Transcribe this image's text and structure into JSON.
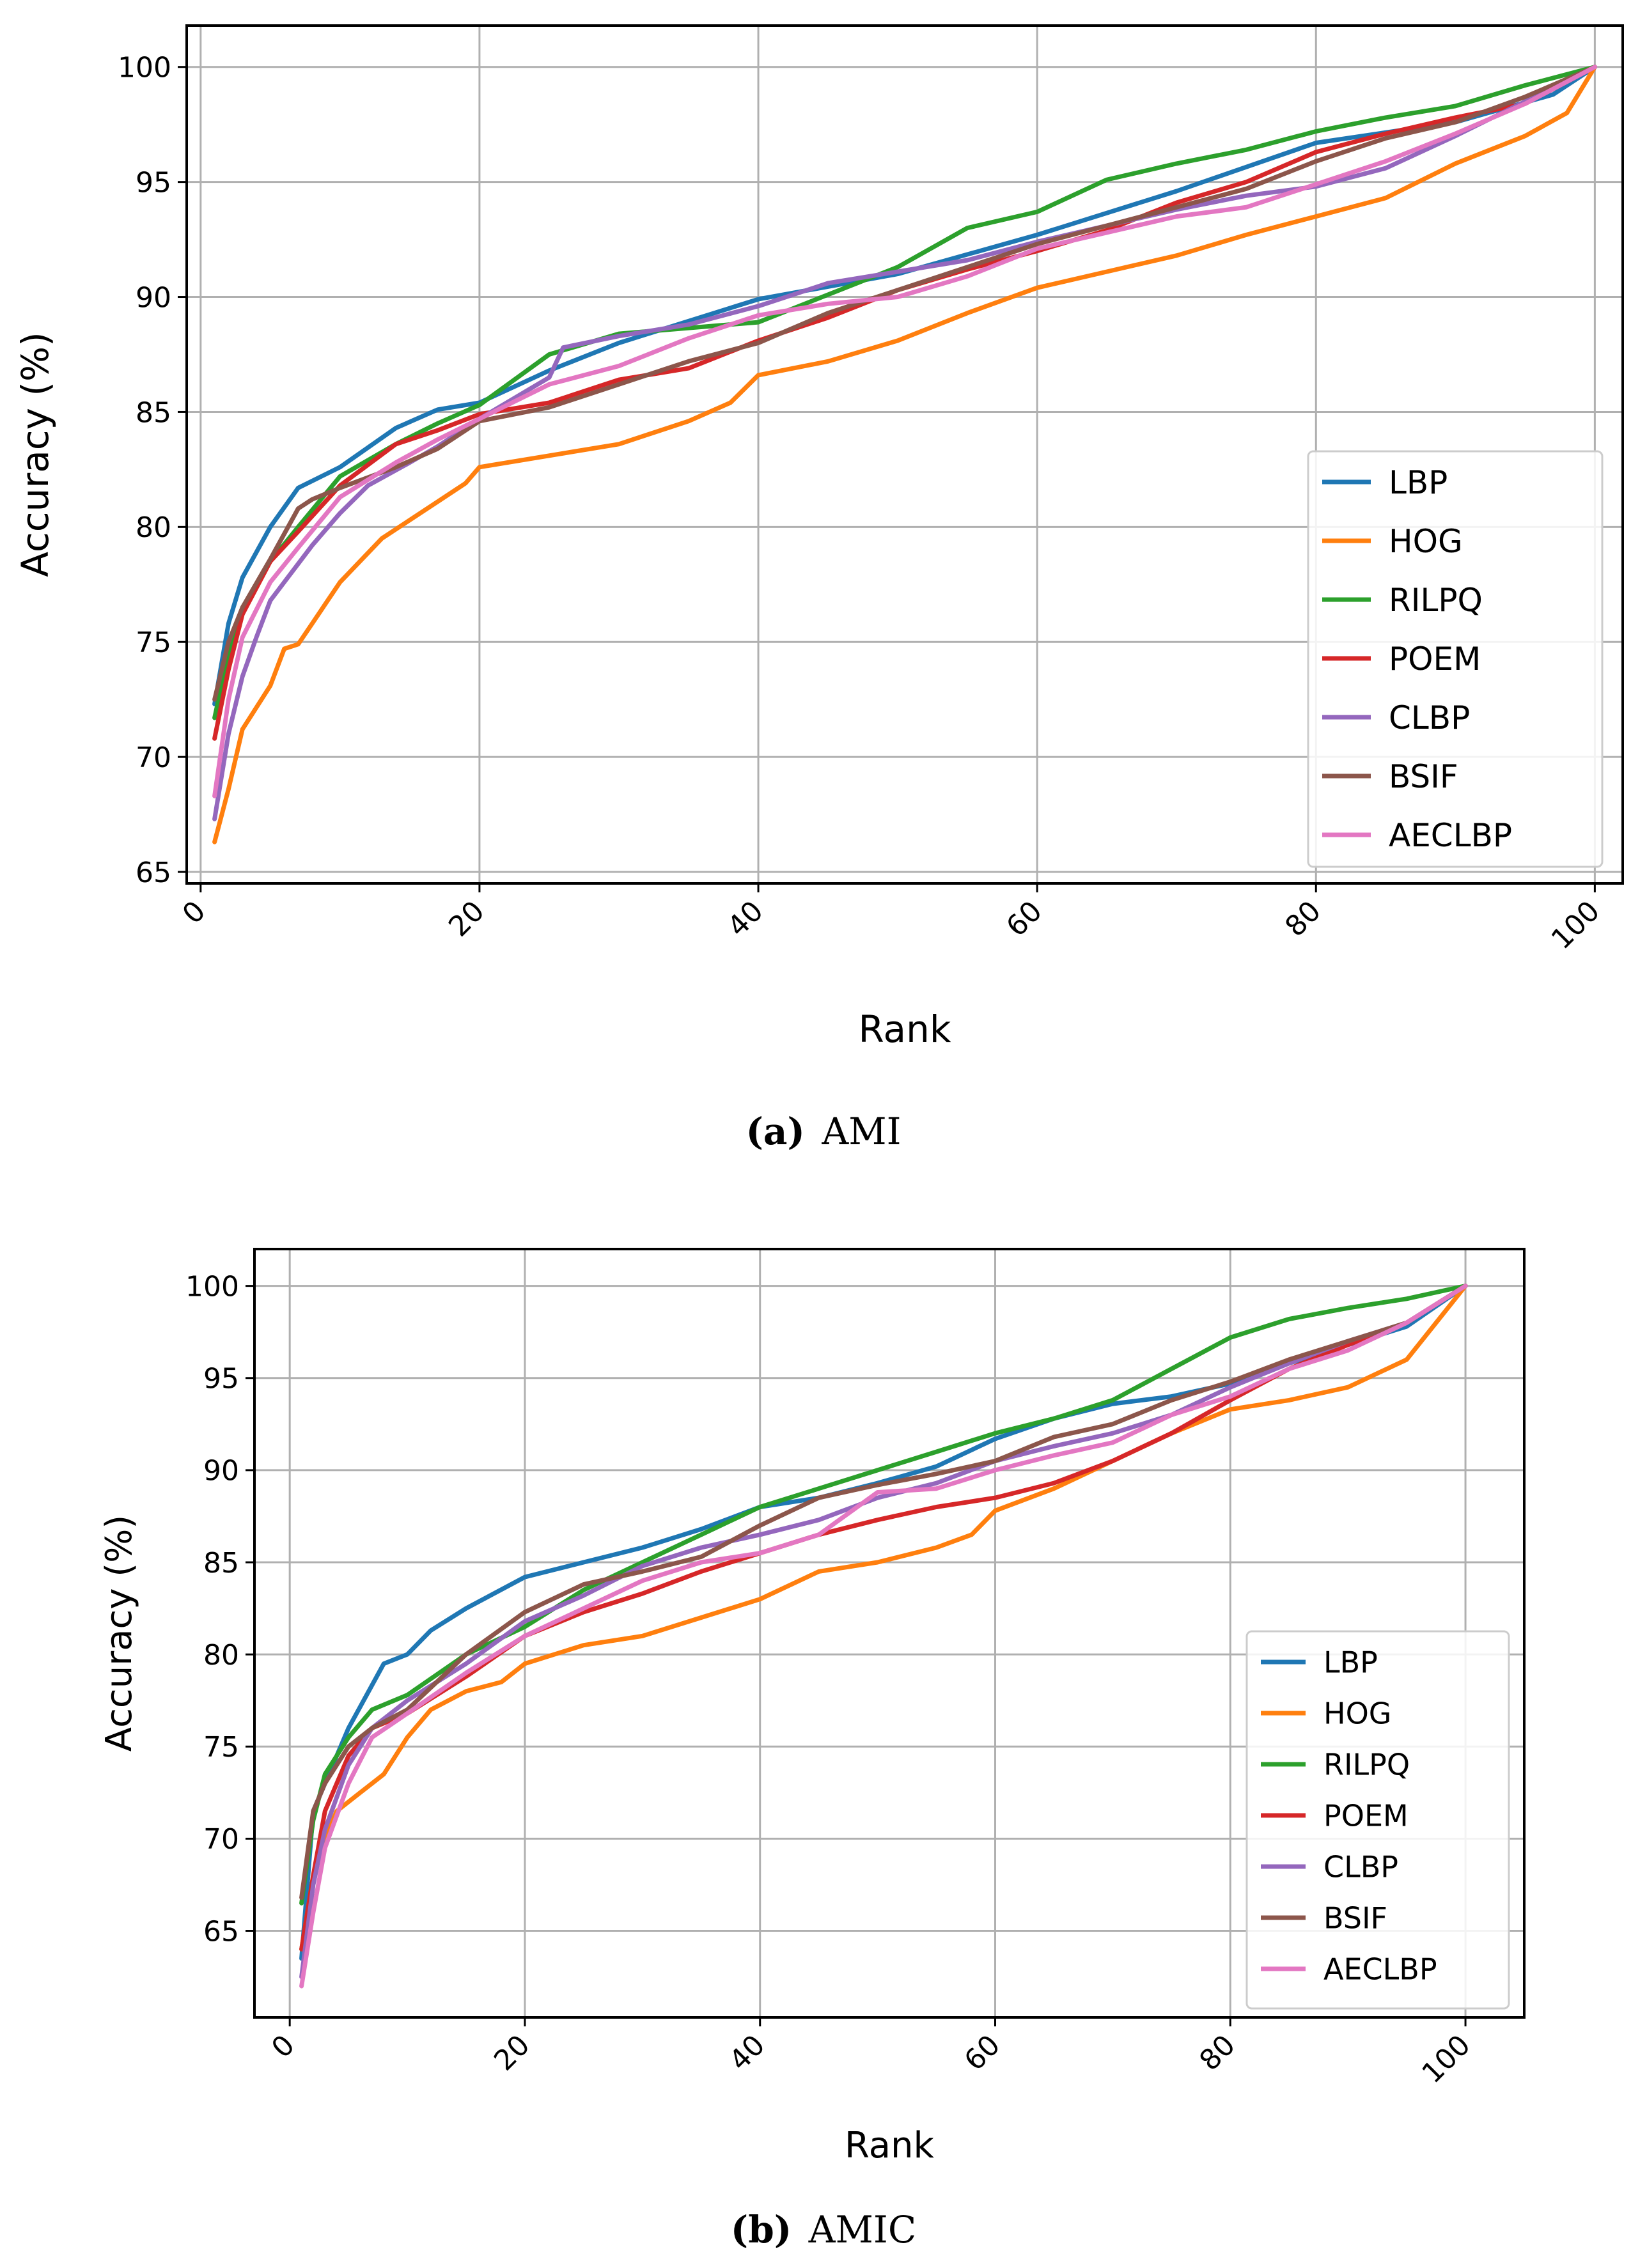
{
  "figure": {
    "captions": [
      {
        "label": "(a)",
        "name": "AMI"
      },
      {
        "label": "(b)",
        "name": "AMIC"
      }
    ]
  },
  "colors": {
    "LBP": "#1f77b4",
    "HOG": "#ff7f0e",
    "RILPQ": "#2ca02c",
    "POEM": "#d62728",
    "CLBP": "#9467bd",
    "BSIF": "#8c564b",
    "AECLBP": "#e377c2",
    "grid": "#b0b0b0",
    "axis": "#000000"
  },
  "chart_data": [
    {
      "type": "line",
      "title": "",
      "caption": "AMI",
      "xlabel": "Rank",
      "ylabel": "Accuracy (%)",
      "xlim": [
        -1,
        102
      ],
      "ylim": [
        64.5,
        101.8
      ],
      "xticks": [
        0,
        20,
        40,
        60,
        80,
        100
      ],
      "yticks": [
        65,
        70,
        75,
        80,
        85,
        90,
        95,
        100
      ],
      "grid": true,
      "legend": "lower right",
      "series": [
        {
          "name": "LBP",
          "x": [
            1,
            2,
            3,
            5,
            7,
            10,
            14,
            17,
            20,
            25,
            30,
            40,
            50,
            60,
            70,
            80,
            90,
            97,
            100
          ],
          "y": [
            72.3,
            75.8,
            77.8,
            80.0,
            81.7,
            82.6,
            84.3,
            85.1,
            85.4,
            86.8,
            88.0,
            89.9,
            91.0,
            92.7,
            94.6,
            96.7,
            97.6,
            98.8,
            100
          ]
        },
        {
          "name": "HOG",
          "x": [
            1,
            2,
            3,
            5,
            6,
            7,
            8,
            10,
            13,
            17,
            19,
            20,
            25,
            30,
            35,
            38,
            40,
            45,
            50,
            55,
            60,
            65,
            70,
            75,
            80,
            85,
            90,
            95,
            98,
            100
          ],
          "y": [
            66.3,
            68.6,
            71.2,
            73.1,
            74.7,
            74.9,
            75.8,
            77.6,
            79.5,
            81.1,
            81.9,
            82.6,
            83.1,
            83.6,
            84.6,
            85.4,
            86.6,
            87.2,
            88.1,
            89.3,
            90.4,
            91.1,
            91.8,
            92.7,
            93.5,
            94.3,
            95.8,
            97.0,
            98.0,
            100
          ]
        },
        {
          "name": "RILPQ",
          "x": [
            1,
            2,
            3,
            5,
            7,
            10,
            14,
            17,
            20,
            25,
            30,
            40,
            50,
            55,
            60,
            65,
            70,
            75,
            80,
            85,
            90,
            95,
            100
          ],
          "y": [
            71.7,
            74.5,
            76.5,
            78.5,
            80.0,
            82.2,
            83.6,
            84.5,
            85.3,
            87.5,
            88.4,
            88.9,
            91.3,
            93.0,
            93.7,
            95.1,
            95.8,
            96.4,
            97.2,
            97.8,
            98.3,
            99.2,
            100
          ]
        },
        {
          "name": "POEM",
          "x": [
            1,
            2,
            3,
            5,
            7,
            10,
            14,
            17,
            20,
            25,
            30,
            35,
            40,
            45,
            50,
            55,
            60,
            65,
            70,
            75,
            80,
            85,
            90,
            95,
            100
          ],
          "y": [
            70.8,
            73.8,
            76.2,
            78.5,
            79.8,
            81.8,
            83.6,
            84.2,
            84.9,
            85.4,
            86.4,
            86.9,
            88.1,
            89.1,
            90.3,
            91.2,
            92.0,
            92.9,
            94.1,
            95.0,
            96.3,
            97.1,
            97.8,
            98.4,
            100
          ]
        },
        {
          "name": "CLBP",
          "x": [
            1,
            2,
            3,
            4,
            5,
            6,
            8,
            10,
            12,
            15,
            17,
            20,
            25,
            26,
            30,
            35,
            40,
            45,
            50,
            55,
            60,
            65,
            70,
            75,
            80,
            85,
            90,
            95,
            100
          ],
          "y": [
            67.3,
            71.0,
            73.5,
            75.2,
            76.8,
            77.6,
            79.2,
            80.6,
            81.8,
            82.8,
            83.5,
            84.7,
            86.5,
            87.8,
            88.3,
            88.8,
            89.6,
            90.6,
            91.1,
            91.6,
            92.4,
            93.1,
            93.8,
            94.4,
            94.8,
            95.6,
            97.0,
            98.5,
            100
          ]
        },
        {
          "name": "BSIF",
          "x": [
            1,
            2,
            3,
            5,
            7,
            8,
            10,
            14,
            17,
            20,
            25,
            30,
            35,
            40,
            45,
            50,
            55,
            60,
            65,
            70,
            75,
            80,
            85,
            90,
            95,
            100
          ],
          "y": [
            72.5,
            75.0,
            76.5,
            78.6,
            80.8,
            81.2,
            81.7,
            82.6,
            83.4,
            84.6,
            85.2,
            86.2,
            87.2,
            88.0,
            89.3,
            90.3,
            91.3,
            92.3,
            93.1,
            93.9,
            94.7,
            95.9,
            96.9,
            97.6,
            98.7,
            100
          ]
        },
        {
          "name": "AECLBP",
          "x": [
            1,
            2,
            3,
            5,
            7,
            10,
            14,
            17,
            20,
            25,
            30,
            35,
            40,
            45,
            50,
            55,
            60,
            65,
            70,
            75,
            80,
            85,
            90,
            95,
            100
          ],
          "y": [
            68.3,
            72.5,
            75.2,
            77.6,
            79.1,
            81.3,
            82.8,
            83.8,
            84.7,
            86.2,
            87.0,
            88.2,
            89.2,
            89.7,
            90.0,
            90.9,
            92.1,
            92.8,
            93.5,
            93.9,
            94.9,
            95.9,
            97.1,
            98.4,
            100
          ]
        }
      ]
    },
    {
      "type": "line",
      "title": "",
      "caption": "AMIC",
      "xlabel": "Rank",
      "ylabel": "Accuracy (%)",
      "xlim": [
        -3,
        105
      ],
      "ylim": [
        60.3,
        102
      ],
      "xticks": [
        0,
        20,
        40,
        60,
        80,
        100
      ],
      "yticks": [
        65,
        70,
        75,
        80,
        85,
        90,
        95,
        100
      ],
      "grid": true,
      "legend": "lower right",
      "series": [
        {
          "name": "LBP",
          "x": [
            1,
            2,
            3,
            5,
            8,
            10,
            12,
            15,
            20,
            25,
            30,
            35,
            40,
            45,
            50,
            55,
            60,
            65,
            70,
            75,
            80,
            85,
            90,
            95,
            100
          ],
          "y": [
            63.5,
            71.5,
            73.0,
            76.0,
            79.5,
            80.0,
            81.3,
            82.5,
            84.2,
            85.0,
            85.8,
            86.8,
            88.0,
            88.5,
            89.3,
            90.2,
            91.7,
            92.8,
            93.6,
            94.0,
            94.7,
            95.8,
            96.8,
            97.8,
            100
          ]
        },
        {
          "name": "HOG",
          "x": [
            1,
            2,
            3,
            4,
            6,
            8,
            10,
            12,
            15,
            18,
            20,
            25,
            30,
            35,
            40,
            45,
            50,
            55,
            58,
            60,
            65,
            70,
            75,
            80,
            85,
            90,
            95,
            100
          ],
          "y": [
            64.0,
            68.0,
            70.0,
            71.5,
            72.5,
            73.5,
            75.5,
            77.0,
            78.0,
            78.5,
            79.5,
            80.5,
            81.0,
            82.0,
            83.0,
            84.5,
            85.0,
            85.8,
            86.5,
            87.8,
            89.0,
            90.5,
            92.0,
            93.3,
            93.8,
            94.5,
            96.0,
            100
          ]
        },
        {
          "name": "RILPQ",
          "x": [
            1,
            2,
            3,
            5,
            7,
            10,
            15,
            20,
            25,
            30,
            35,
            40,
            45,
            50,
            55,
            60,
            65,
            70,
            75,
            80,
            85,
            90,
            95,
            100
          ],
          "y": [
            66.5,
            71.0,
            73.5,
            75.5,
            77.0,
            77.8,
            80.0,
            81.5,
            83.5,
            85.0,
            86.5,
            88.0,
            89.0,
            90.0,
            91.0,
            92.0,
            92.8,
            93.8,
            95.5,
            97.2,
            98.2,
            98.8,
            99.3,
            100
          ]
        },
        {
          "name": "POEM",
          "x": [
            1,
            2,
            3,
            5,
            7,
            10,
            15,
            20,
            25,
            30,
            35,
            40,
            45,
            50,
            55,
            60,
            65,
            70,
            75,
            80,
            85,
            90,
            95,
            100
          ],
          "y": [
            64.0,
            68.0,
            71.5,
            74.5,
            76.0,
            76.8,
            78.8,
            81.0,
            82.3,
            83.3,
            84.5,
            85.5,
            86.5,
            87.3,
            88.0,
            88.5,
            89.3,
            90.5,
            92.0,
            93.8,
            95.5,
            96.8,
            98.0,
            100
          ]
        },
        {
          "name": "CLBP",
          "x": [
            1,
            2,
            3,
            5,
            7,
            10,
            15,
            20,
            25,
            30,
            35,
            40,
            45,
            50,
            55,
            60,
            65,
            70,
            75,
            80,
            85,
            90,
            95,
            100
          ],
          "y": [
            62.5,
            67.5,
            70.5,
            74.0,
            76.0,
            77.5,
            79.5,
            81.8,
            83.2,
            84.8,
            85.8,
            86.5,
            87.3,
            88.5,
            89.3,
            90.5,
            91.3,
            92.0,
            93.0,
            94.5,
            95.8,
            97.0,
            98.0,
            100
          ]
        },
        {
          "name": "BSIF",
          "x": [
            1,
            2,
            3,
            5,
            7,
            10,
            15,
            20,
            25,
            30,
            35,
            40,
            45,
            50,
            55,
            60,
            65,
            70,
            75,
            80,
            85,
            90,
            95,
            100
          ],
          "y": [
            66.8,
            71.5,
            73.0,
            75.0,
            76.0,
            77.0,
            80.0,
            82.3,
            83.8,
            84.5,
            85.3,
            87.0,
            88.5,
            89.2,
            89.8,
            90.5,
            91.8,
            92.5,
            93.8,
            94.8,
            96.0,
            97.0,
            98.0,
            100
          ]
        },
        {
          "name": "AECLBP",
          "x": [
            1,
            2,
            3,
            5,
            7,
            10,
            15,
            20,
            25,
            30,
            35,
            40,
            45,
            50,
            55,
            60,
            65,
            70,
            75,
            80,
            85,
            90,
            95,
            100
          ],
          "y": [
            62.0,
            66.0,
            69.5,
            73.0,
            75.5,
            76.8,
            79.0,
            81.0,
            82.5,
            84.0,
            85.0,
            85.5,
            86.5,
            88.8,
            89.0,
            90.0,
            90.8,
            91.5,
            93.0,
            94.0,
            95.5,
            96.5,
            98.0,
            100
          ]
        }
      ]
    }
  ]
}
